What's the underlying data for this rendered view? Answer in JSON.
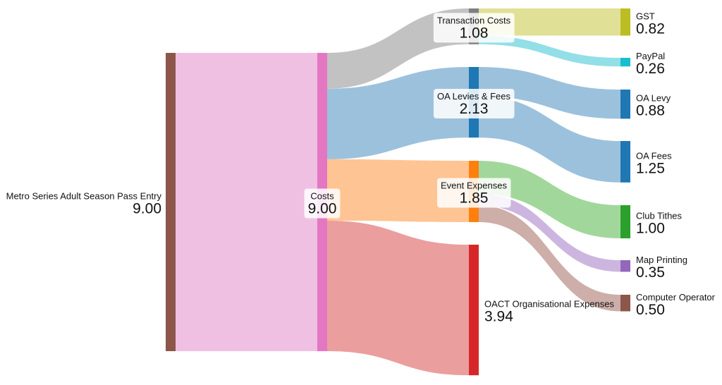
{
  "chart_data": {
    "type": "sankey",
    "nodes": [
      {
        "id": "entry",
        "label": "Metro Series Adult Season Pass Entry",
        "value_label": "9.00",
        "value": 9.0,
        "color": "#8c564b",
        "column": 0,
        "label_side": "left"
      },
      {
        "id": "costs",
        "label": "Costs",
        "value_label": "9.00",
        "value": 9.0,
        "color": "#e377c2",
        "column": 1,
        "label_side": "center",
        "boxed": true
      },
      {
        "id": "trans",
        "label": "Transaction Costs",
        "value_label": "1.08",
        "value": 1.08,
        "color": "#7f7f7f",
        "column": 2,
        "label_side": "center",
        "boxed": true
      },
      {
        "id": "oalevies",
        "label": "OA Levies & Fees",
        "value_label": "2.13",
        "value": 2.13,
        "color": "#1f77b4",
        "column": 2,
        "label_side": "center",
        "boxed": true
      },
      {
        "id": "event",
        "label": "Event Expenses",
        "value_label": "1.85",
        "value": 1.85,
        "color": "#ff7f0e",
        "column": 2,
        "label_side": "center",
        "boxed": true
      },
      {
        "id": "oact",
        "label": "OACT Organisational Expenses",
        "value_label": "3.94",
        "value": 3.94,
        "color": "#d62728",
        "column": 2,
        "label_side": "right"
      },
      {
        "id": "gst",
        "label": "GST",
        "value_label": "0.82",
        "value": 0.82,
        "color": "#bcbd22",
        "column": 3,
        "label_side": "right"
      },
      {
        "id": "paypal",
        "label": "PayPal",
        "value_label": "0.26",
        "value": 0.26,
        "color": "#17becf",
        "column": 3,
        "label_side": "right"
      },
      {
        "id": "oalevy",
        "label": "OA Levy",
        "value_label": "0.88",
        "value": 0.88,
        "color": "#1f77b4",
        "column": 3,
        "label_side": "right"
      },
      {
        "id": "oafees",
        "label": "OA Fees",
        "value_label": "1.25",
        "value": 1.25,
        "color": "#1f77b4",
        "column": 3,
        "label_side": "right"
      },
      {
        "id": "tithes",
        "label": "Club Tithes",
        "value_label": "1.00",
        "value": 1.0,
        "color": "#2ca02c",
        "column": 3,
        "label_side": "right"
      },
      {
        "id": "map",
        "label": "Map Printing",
        "value_label": "0.35",
        "value": 0.35,
        "color": "#9467bd",
        "column": 3,
        "label_side": "right"
      },
      {
        "id": "operator",
        "label": "Computer Operator",
        "value_label": "0.50",
        "value": 0.5,
        "color": "#8c564b",
        "column": 3,
        "label_side": "right"
      }
    ],
    "links": [
      {
        "source": "entry",
        "target": "costs",
        "value": 9.0,
        "color": "#f0c0e2"
      },
      {
        "source": "costs",
        "target": "trans",
        "value": 1.08,
        "color": "#c2c2c2"
      },
      {
        "source": "costs",
        "target": "oalevies",
        "value": 2.13,
        "color": "#9cc1dc"
      },
      {
        "source": "costs",
        "target": "event",
        "value": 1.85,
        "color": "#ffc493"
      },
      {
        "source": "costs",
        "target": "oact",
        "value": 3.94,
        "color": "#eb9e9e"
      },
      {
        "source": "trans",
        "target": "gst",
        "value": 0.82,
        "color": "#e0e096"
      },
      {
        "source": "trans",
        "target": "paypal",
        "value": 0.26,
        "color": "#92dfe8"
      },
      {
        "source": "oalevies",
        "target": "oalevy",
        "value": 0.88,
        "color": "#9cc1dc"
      },
      {
        "source": "oalevies",
        "target": "oafees",
        "value": 1.25,
        "color": "#9cc1dc"
      },
      {
        "source": "event",
        "target": "tithes",
        "value": 1.0,
        "color": "#a2d79b"
      },
      {
        "source": "event",
        "target": "map",
        "value": 0.35,
        "color": "#ccb6e0"
      },
      {
        "source": "event",
        "target": "operator",
        "value": 0.5,
        "color": "#cdaea8"
      }
    ]
  }
}
